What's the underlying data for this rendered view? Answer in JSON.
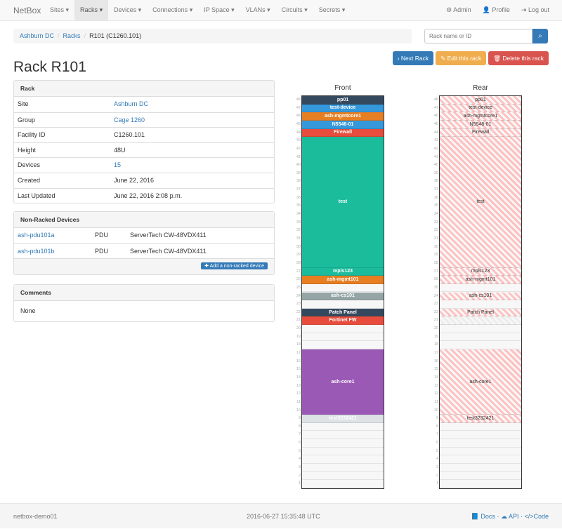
{
  "nav": {
    "brand": "NetBox",
    "menu": [
      "Sites",
      "Racks",
      "Devices",
      "Connections",
      "IP Space",
      "VLANs",
      "Circuits",
      "Secrets"
    ],
    "active": "Racks",
    "admin": "Admin",
    "profile": "Profile",
    "logout": "Log out"
  },
  "breadcrumb": [
    "Ashburn DC",
    "Racks",
    "R101 (C1260.101)"
  ],
  "search": {
    "placeholder": "Rack name or ID"
  },
  "buttons": {
    "next": "Next Rack",
    "edit": "Edit this rack",
    "delete": "Delete this rack"
  },
  "title": "Rack R101",
  "rack_panel": {
    "heading": "Rack",
    "rows": [
      {
        "k": "Site",
        "v": "Ashburn DC",
        "link": true
      },
      {
        "k": "Group",
        "v": "Cage 1260",
        "link": true
      },
      {
        "k": "Facility ID",
        "v": "C1260.101"
      },
      {
        "k": "Height",
        "v": "48U"
      },
      {
        "k": "Devices",
        "v": "15",
        "link": true
      },
      {
        "k": "Created",
        "v": "June 22, 2016"
      },
      {
        "k": "Last Updated",
        "v": "June 22, 2016 2:08 p.m."
      }
    ]
  },
  "nonracked": {
    "heading": "Non-Racked Devices",
    "rows": [
      {
        "name": "ash-pdu101a",
        "role": "PDU",
        "type": "ServerTech CW-48VDX411"
      },
      {
        "name": "ash-pdu101b",
        "role": "PDU",
        "type": "ServerTech CW-48VDX411"
      }
    ],
    "add": "Add a non-racked device"
  },
  "comments": {
    "heading": "Comments",
    "body": "None"
  },
  "rack": {
    "height": 48,
    "front_title": "Front",
    "rear_title": "Rear",
    "front": [
      {
        "name": "pp01",
        "top": 48,
        "u": 1,
        "color": "#34495e"
      },
      {
        "name": "test-device",
        "top": 47,
        "u": 1,
        "color": "#3498db"
      },
      {
        "name": "ash-mgmtcore1",
        "top": 46,
        "u": 1,
        "color": "#e67e22"
      },
      {
        "name": "N5548-01",
        "top": 45,
        "u": 1,
        "color": "#3498db"
      },
      {
        "name": "Firewall",
        "top": 44,
        "u": 1,
        "color": "#e74c3c"
      },
      {
        "name": "test",
        "top": 43,
        "u": 16,
        "color": "#1abc9c"
      },
      {
        "name": "mpls123",
        "top": 27,
        "u": 1,
        "color": "#1abc9c"
      },
      {
        "name": "ash-mgmt101",
        "top": 26,
        "u": 1,
        "color": "#e67e22"
      },
      {
        "name": "ash-cs101",
        "top": 24,
        "u": 1,
        "color": "#95a5a6"
      },
      {
        "name": "Patch Panel",
        "top": 22,
        "u": 1,
        "color": "#34495e"
      },
      {
        "name": "Fortinet FW",
        "top": 21,
        "u": 1,
        "color": "#e74c3c"
      },
      {
        "name": "ash-core1",
        "top": 17,
        "u": 8,
        "color": "#9b59b6"
      },
      {
        "name": "test3232421",
        "top": 9,
        "u": 1,
        "color": "#dde2e5"
      }
    ],
    "rear": [
      {
        "name": "pp01",
        "top": 48,
        "u": 1
      },
      {
        "name": "test-device",
        "top": 47,
        "u": 1
      },
      {
        "name": "ash-mgmtcore1",
        "top": 46,
        "u": 1
      },
      {
        "name": "N5548-01",
        "top": 45,
        "u": 1
      },
      {
        "name": "Firewall",
        "top": 44,
        "u": 1
      },
      {
        "name": "test",
        "top": 43,
        "u": 16
      },
      {
        "name": "mpls123",
        "top": 27,
        "u": 1
      },
      {
        "name": "ash-mgmt101",
        "top": 26,
        "u": 1
      },
      {
        "name": "ash-cs101",
        "top": 24,
        "u": 1
      },
      {
        "name": "Patch Panel",
        "top": 22,
        "u": 1
      },
      {
        "name": "",
        "top": 21,
        "u": 1,
        "grey": true
      },
      {
        "name": "ash-core1",
        "top": 17,
        "u": 8
      },
      {
        "name": "test3232421",
        "top": 9,
        "u": 1
      }
    ]
  },
  "footer": {
    "host": "netbox-demo01",
    "time": "2016-06-27 15:35:48 UTC",
    "docs": "Docs",
    "api": "API",
    "code": "Code"
  }
}
